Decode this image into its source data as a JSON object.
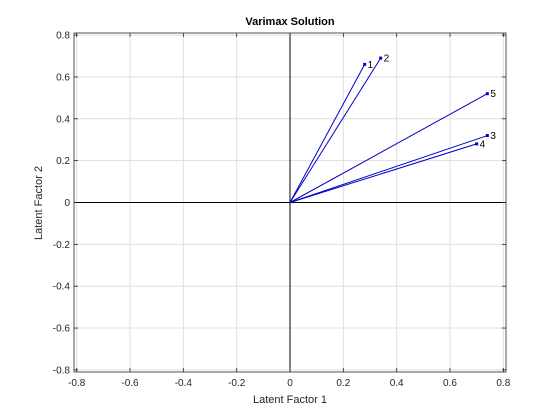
{
  "chart_data": {
    "type": "scatter",
    "title": "Varimax Solution",
    "xlabel": "Latent Factor 1",
    "ylabel": "Latent Factor 2",
    "xlim": [
      -0.81,
      0.81
    ],
    "ylim": [
      -0.81,
      0.81
    ],
    "xticks": [
      -0.8,
      -0.6,
      -0.4,
      -0.2,
      0,
      0.2,
      0.4,
      0.6,
      0.8
    ],
    "yticks": [
      -0.8,
      -0.6,
      -0.4,
      -0.2,
      0,
      0.2,
      0.4,
      0.6,
      0.8
    ],
    "xtick_labels": [
      "-0.8",
      "-0.6",
      "-0.4",
      "-0.2",
      "0",
      "0.2",
      "0.4",
      "0.6",
      "0.8"
    ],
    "ytick_labels": [
      "-0.8",
      "-0.6",
      "-0.4",
      "-0.2",
      "0",
      "0.2",
      "0.4",
      "0.6",
      "0.8"
    ],
    "grid": true,
    "vectors_from_origin": true,
    "points": [
      {
        "label": "1",
        "x": 0.28,
        "y": 0.66
      },
      {
        "label": "2",
        "x": 0.34,
        "y": 0.69
      },
      {
        "label": "3",
        "x": 0.74,
        "y": 0.32
      },
      {
        "label": "4",
        "x": 0.7,
        "y": 0.28
      },
      {
        "label": "5",
        "x": 0.74,
        "y": 0.52
      }
    ],
    "colors": {
      "vector": "#0000cc",
      "grid": "#dedede",
      "axis": "#000000"
    }
  }
}
